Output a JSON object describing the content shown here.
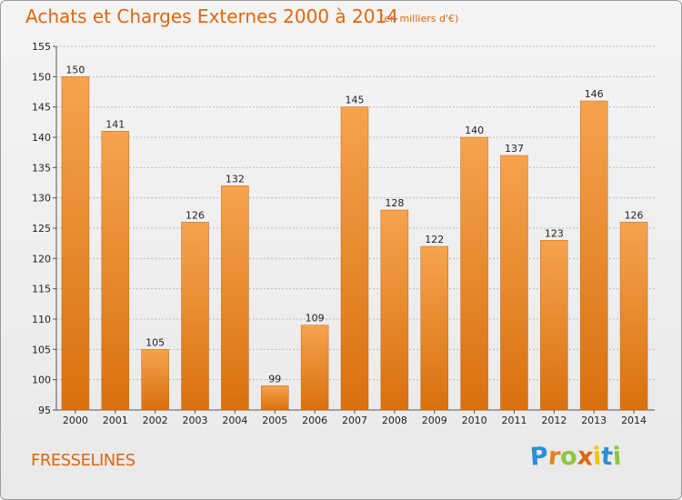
{
  "chart_data": {
    "type": "bar",
    "title": "Achats et Charges Externes 2000 à 2014",
    "subtitle": "(en milliers d'€)",
    "xlabel": "",
    "ylabel": "",
    "categories": [
      "2000",
      "2001",
      "2002",
      "2003",
      "2004",
      "2005",
      "2006",
      "2007",
      "2008",
      "2009",
      "2010",
      "2011",
      "2012",
      "2013",
      "2014"
    ],
    "values": [
      150,
      141,
      105,
      126,
      132,
      99,
      109,
      145,
      128,
      122,
      140,
      137,
      123,
      146,
      126
    ],
    "ylim": [
      95,
      155
    ],
    "yticks": [
      95,
      100,
      105,
      110,
      115,
      120,
      125,
      130,
      135,
      140,
      145,
      150,
      155
    ],
    "grid": true,
    "bar_color": "#e8801e",
    "title_color": "#e2650d"
  },
  "place": "FRESSELINES",
  "brand": {
    "letters": [
      "P",
      "r",
      "o",
      "x",
      "i",
      "t",
      "i"
    ],
    "colors": [
      "#2b8fd6",
      "#e8801e",
      "#8cc63f",
      "#e2650d",
      "#f1c40f",
      "#2b8fd6",
      "#8cc63f"
    ]
  }
}
